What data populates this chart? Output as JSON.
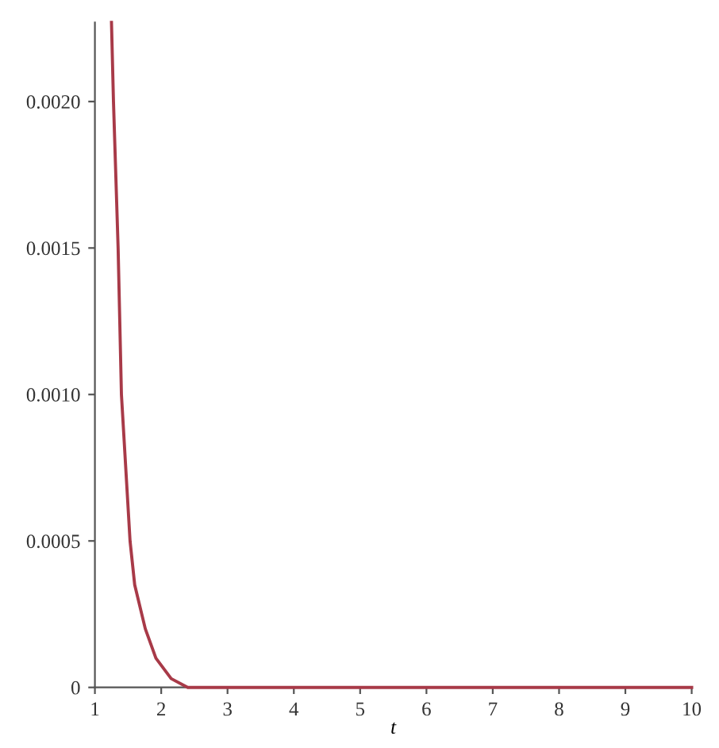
{
  "chart_data": {
    "type": "line",
    "xlabel": "t",
    "x": [
      1.25,
      1.28,
      1.35,
      1.4,
      1.53,
      1.6,
      1.76,
      1.92,
      2.15,
      2.4,
      3,
      4,
      5,
      6,
      7,
      8,
      9,
      10
    ],
    "values": [
      0.00227,
      0.002,
      0.0015,
      0.001,
      0.0005,
      0.00035,
      0.0002,
      0.0001,
      3e-05,
      0,
      0,
      0,
      0,
      0,
      0,
      0,
      0,
      0
    ],
    "color": "#a83a48",
    "xlim": [
      1,
      10
    ],
    "ylim": [
      0,
      0.00227
    ],
    "xticks": [
      1,
      2,
      3,
      4,
      5,
      6,
      7,
      8,
      9,
      10
    ],
    "yticks": [
      0,
      {
        "value": 0.0005,
        "label": "0.0005"
      },
      {
        "value": 0.001,
        "label": "0.0010"
      },
      {
        "value": 0.0015,
        "label": "0.0015"
      },
      {
        "value": 0.002,
        "label": "0.0020"
      }
    ],
    "grid": false,
    "marker": "none",
    "line_style": "solid"
  }
}
